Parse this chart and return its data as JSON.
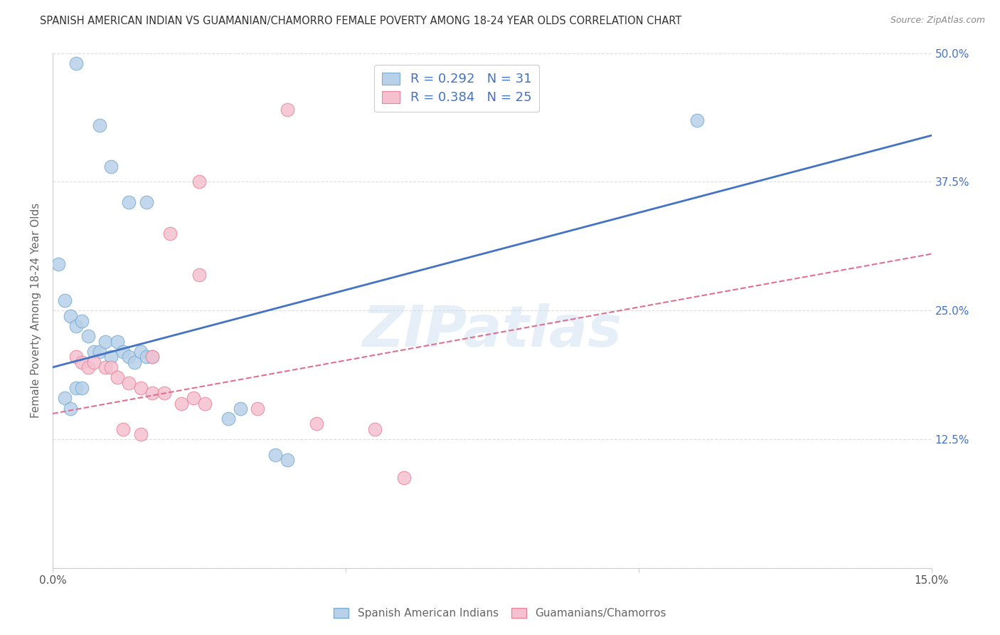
{
  "title": "SPANISH AMERICAN INDIAN VS GUAMANIAN/CHAMORRO FEMALE POVERTY AMONG 18-24 YEAR OLDS CORRELATION CHART",
  "source": "Source: ZipAtlas.com",
  "ylabel": "Female Poverty Among 18-24 Year Olds",
  "xmin": 0.0,
  "xmax": 0.15,
  "ymin": 0.0,
  "ymax": 0.5,
  "ytick_labels_right": [
    "50.0%",
    "37.5%",
    "25.0%",
    "12.5%",
    ""
  ],
  "ytick_vals": [
    0.5,
    0.375,
    0.25,
    0.125,
    0.0
  ],
  "series1_name": "Spanish American Indians",
  "series1_color": "#b8d0e8",
  "series1_edge": "#7aadd4",
  "series1_R": 0.292,
  "series1_N": 31,
  "series1_line_color": "#4472c4",
  "series2_name": "Guamanians/Chamorros",
  "series2_color": "#f5c0cf",
  "series2_edge": "#e8879b",
  "series2_R": 0.384,
  "series2_N": 25,
  "series2_line_color": "#e07090",
  "watermark": "ZIPatlas",
  "blue_points_x": [
    0.004,
    0.008,
    0.01,
    0.013,
    0.016,
    0.001,
    0.002,
    0.003,
    0.004,
    0.005,
    0.006,
    0.007,
    0.008,
    0.009,
    0.01,
    0.011,
    0.012,
    0.013,
    0.014,
    0.015,
    0.016,
    0.017,
    0.03,
    0.032,
    0.038,
    0.04,
    0.11,
    0.002,
    0.003,
    0.004,
    0.005
  ],
  "blue_points_y": [
    0.49,
    0.43,
    0.39,
    0.355,
    0.355,
    0.295,
    0.26,
    0.245,
    0.235,
    0.24,
    0.225,
    0.21,
    0.21,
    0.22,
    0.205,
    0.22,
    0.21,
    0.205,
    0.2,
    0.21,
    0.205,
    0.205,
    0.145,
    0.155,
    0.11,
    0.105,
    0.435,
    0.165,
    0.155,
    0.175,
    0.175
  ],
  "pink_points_x": [
    0.04,
    0.025,
    0.025,
    0.004,
    0.005,
    0.006,
    0.007,
    0.009,
    0.01,
    0.011,
    0.013,
    0.015,
    0.017,
    0.019,
    0.022,
    0.024,
    0.026,
    0.035,
    0.045,
    0.055,
    0.06,
    0.02,
    0.012,
    0.015,
    0.017
  ],
  "pink_points_y": [
    0.445,
    0.375,
    0.285,
    0.205,
    0.2,
    0.195,
    0.2,
    0.195,
    0.195,
    0.185,
    0.18,
    0.175,
    0.17,
    0.17,
    0.16,
    0.165,
    0.16,
    0.155,
    0.14,
    0.135,
    0.088,
    0.325,
    0.135,
    0.13,
    0.205
  ],
  "blue_line_x0": 0.0,
  "blue_line_y0": 0.195,
  "blue_line_x1": 0.15,
  "blue_line_y1": 0.42,
  "pink_line_x0": 0.0,
  "pink_line_y0": 0.15,
  "pink_line_x1": 0.15,
  "pink_line_y1": 0.305,
  "legend_text_color": "#4472c4",
  "grid_color": "#dddddd"
}
